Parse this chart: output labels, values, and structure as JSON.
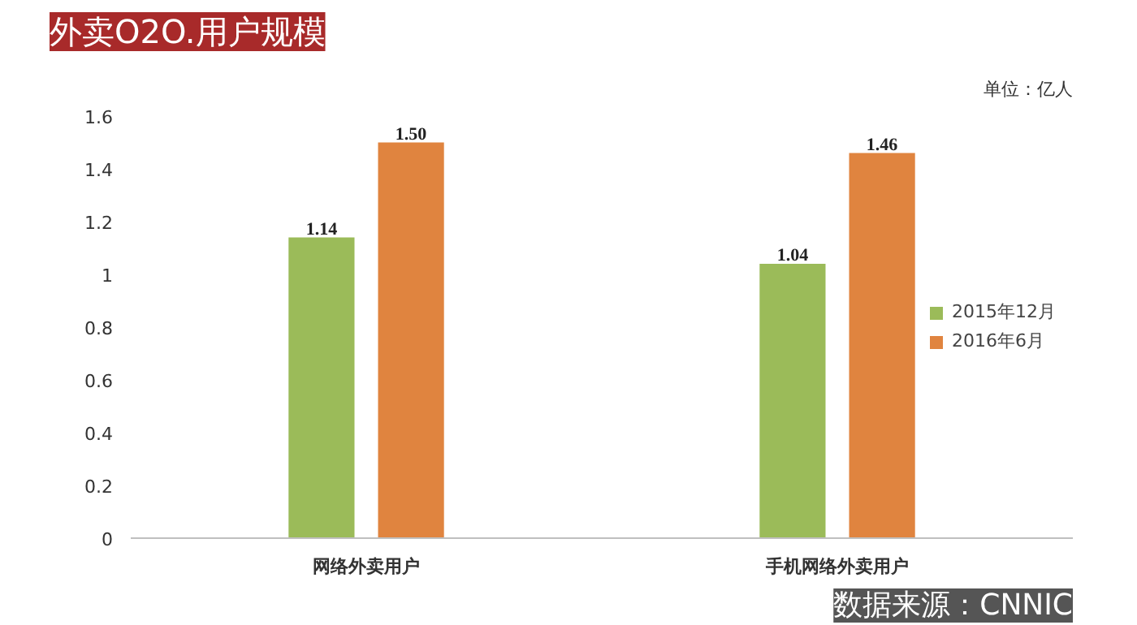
{
  "chart_data": {
    "type": "bar",
    "title": "外卖O2O.用户规模",
    "categories": [
      "网络外卖用户",
      "手机网络外卖用户"
    ],
    "series": [
      {
        "name": "2015年12月",
        "color": "#9bbb59",
        "values": [
          1.14,
          1.04
        ],
        "value_labels": [
          "1.14",
          "1.04"
        ]
      },
      {
        "name": "2016年6月",
        "color": "#e0843f",
        "values": [
          1.5,
          1.46
        ],
        "value_labels": [
          "1.50",
          "1.46"
        ]
      }
    ],
    "ylim": [
      0,
      1.6
    ],
    "yticks": [
      0,
      0.2,
      0.4,
      0.6,
      0.8,
      1,
      1.2,
      1.4,
      1.6
    ],
    "grid": false,
    "legend": "right",
    "annotations": [
      "单位：亿人",
      "数据来源：CNNIC"
    ]
  }
}
